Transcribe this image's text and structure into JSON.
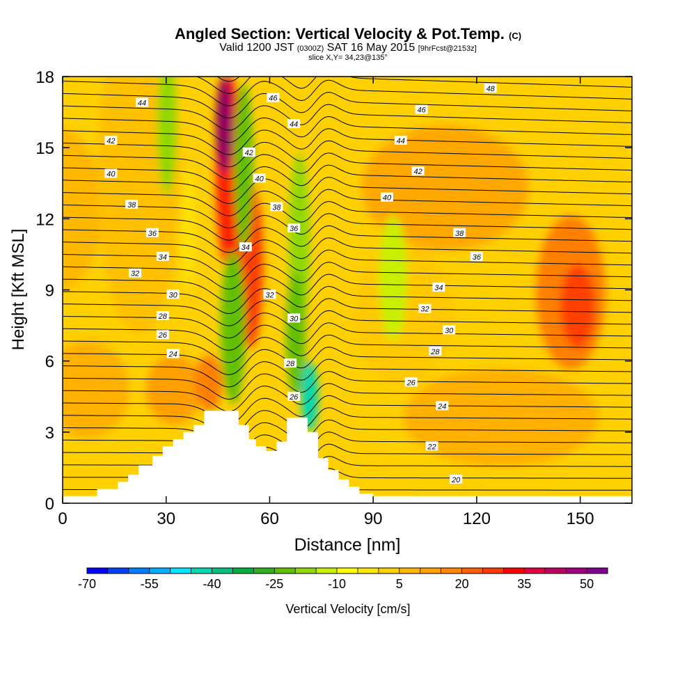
{
  "chart_data": {
    "type": "heatmap",
    "title": {
      "main": "Angled Section: Vertical Velocity & Pot.Temp.",
      "main_unit": "(C)",
      "valid_prefix": "Valid 1200 JST",
      "valid_zulu": "(0300Z)",
      "valid_date": "SAT 16 May 2015",
      "forecast": "[9hrFcst@2153z]",
      "slice": "slice X,Y= 34,23@135°"
    },
    "xlabel": "Distance [nm]",
    "ylabel": "Height [Kft MSL]",
    "xlim": [
      0,
      165
    ],
    "ylim": [
      0,
      18
    ],
    "x_ticks": [
      0,
      30,
      60,
      90,
      120,
      150
    ],
    "y_ticks": [
      0,
      3,
      6,
      9,
      12,
      15,
      18
    ],
    "colorbar": {
      "label": "Vertical Velocity [cm/s]",
      "tick_labels": [
        -70,
        -55,
        -40,
        -25,
        -10,
        5,
        20,
        35,
        50
      ],
      "levels": [
        -70,
        -65,
        -60,
        -55,
        -50,
        -45,
        -40,
        -35,
        -30,
        -25,
        -20,
        -15,
        -10,
        -5,
        0,
        5,
        10,
        15,
        20,
        25,
        30,
        35,
        40,
        45,
        50,
        55
      ],
      "colors": [
        "#0000ff",
        "#0040ff",
        "#0080ff",
        "#00b0ff",
        "#00e8ff",
        "#00d8b0",
        "#00c080",
        "#00b040",
        "#30b020",
        "#60c000",
        "#90d800",
        "#c8f000",
        "#ffff00",
        "#ffe800",
        "#ffd000",
        "#ffb800",
        "#ffa000",
        "#ff8800",
        "#ff6000",
        "#ff3800",
        "#ff0000",
        "#e00040",
        "#c00060",
        "#a00080",
        "#800090"
      ]
    },
    "terrain": [
      [
        0,
        0.3
      ],
      [
        10,
        0.3
      ],
      [
        10,
        0.6
      ],
      [
        16,
        0.6
      ],
      [
        16,
        0.9
      ],
      [
        19,
        0.9
      ],
      [
        19,
        1.2
      ],
      [
        22,
        1.2
      ],
      [
        22,
        1.6
      ],
      [
        26,
        1.6
      ],
      [
        26,
        2.0
      ],
      [
        29,
        2.0
      ],
      [
        29,
        2.4
      ],
      [
        32,
        2.4
      ],
      [
        32,
        2.7
      ],
      [
        35,
        2.7
      ],
      [
        35,
        3.0
      ],
      [
        38,
        3.0
      ],
      [
        38,
        3.3
      ],
      [
        41,
        3.3
      ],
      [
        41,
        3.9
      ],
      [
        51,
        3.9
      ],
      [
        51,
        3.3
      ],
      [
        54,
        3.3
      ],
      [
        54,
        2.7
      ],
      [
        56,
        2.7
      ],
      [
        56,
        2.4
      ],
      [
        59,
        2.4
      ],
      [
        59,
        2.2
      ],
      [
        62,
        2.2
      ],
      [
        62,
        2.6
      ],
      [
        65,
        2.6
      ],
      [
        65,
        3.6
      ],
      [
        71,
        3.6
      ],
      [
        71,
        3.0
      ],
      [
        74,
        3.0
      ],
      [
        74,
        1.9
      ],
      [
        77,
        1.9
      ],
      [
        77,
        1.4
      ],
      [
        80,
        1.4
      ],
      [
        80,
        1.0
      ],
      [
        83,
        1.0
      ],
      [
        83,
        0.7
      ],
      [
        86,
        0.7
      ],
      [
        86,
        0.4
      ],
      [
        90,
        0.4
      ],
      [
        90,
        0.3
      ],
      [
        165,
        0.3
      ]
    ],
    "theta_labels": [
      {
        "x": 23,
        "y": 16.9,
        "t": "44"
      },
      {
        "x": 14,
        "y": 15.3,
        "t": "42"
      },
      {
        "x": 14,
        "y": 13.9,
        "t": "40"
      },
      {
        "x": 20,
        "y": 12.6,
        "t": "38"
      },
      {
        "x": 26,
        "y": 11.4,
        "t": "36"
      },
      {
        "x": 29,
        "y": 10.4,
        "t": "34"
      },
      {
        "x": 21,
        "y": 9.7,
        "t": "32"
      },
      {
        "x": 32,
        "y": 8.8,
        "t": "30"
      },
      {
        "x": 29,
        "y": 7.9,
        "t": "28"
      },
      {
        "x": 29,
        "y": 7.1,
        "t": "26"
      },
      {
        "x": 32,
        "y": 6.3,
        "t": "24"
      },
      {
        "x": 61,
        "y": 17.1,
        "t": "46"
      },
      {
        "x": 54,
        "y": 14.8,
        "t": "42"
      },
      {
        "x": 57,
        "y": 13.7,
        "t": "40"
      },
      {
        "x": 62,
        "y": 12.5,
        "t": "38"
      },
      {
        "x": 67,
        "y": 11.6,
        "t": "36"
      },
      {
        "x": 53,
        "y": 10.8,
        "t": "34"
      },
      {
        "x": 60,
        "y": 8.8,
        "t": "32"
      },
      {
        "x": 67,
        "y": 7.8,
        "t": "30"
      },
      {
        "x": 66,
        "y": 5.9,
        "t": "28"
      },
      {
        "x": 67,
        "y": 4.5,
        "t": "26"
      },
      {
        "x": 67,
        "y": 16.0,
        "t": "44"
      },
      {
        "x": 124,
        "y": 17.5,
        "t": "48"
      },
      {
        "x": 104,
        "y": 16.6,
        "t": "46"
      },
      {
        "x": 98,
        "y": 15.3,
        "t": "44"
      },
      {
        "x": 103,
        "y": 14.0,
        "t": "42"
      },
      {
        "x": 94,
        "y": 12.9,
        "t": "40"
      },
      {
        "x": 115,
        "y": 11.4,
        "t": "38"
      },
      {
        "x": 120,
        "y": 10.4,
        "t": "36"
      },
      {
        "x": 109,
        "y": 9.1,
        "t": "34"
      },
      {
        "x": 105,
        "y": 8.2,
        "t": "32"
      },
      {
        "x": 112,
        "y": 7.3,
        "t": "30"
      },
      {
        "x": 108,
        "y": 6.4,
        "t": "28"
      },
      {
        "x": 101,
        "y": 5.1,
        "t": "26"
      },
      {
        "x": 110,
        "y": 4.1,
        "t": "24"
      },
      {
        "x": 107,
        "y": 2.4,
        "t": "22"
      },
      {
        "x": 114,
        "y": 1.0,
        "t": "20"
      }
    ]
  }
}
